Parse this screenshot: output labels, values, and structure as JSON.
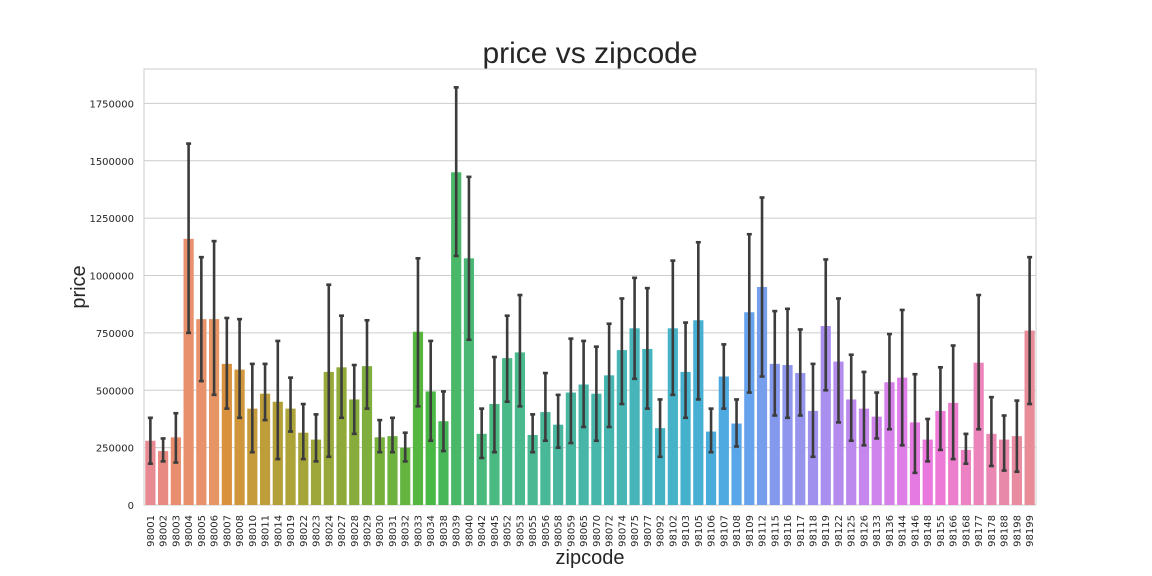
{
  "chart_data": {
    "type": "bar",
    "title": "price vs zipcode",
    "xlabel": "zipcode",
    "ylabel": "price",
    "ylim": [
      0,
      1900000
    ],
    "yticks": [
      0,
      250000,
      500000,
      750000,
      1000000,
      1250000,
      1500000,
      1750000
    ],
    "grid": "horizontal",
    "error_bars": true,
    "categories": [
      "98001",
      "98002",
      "98003",
      "98004",
      "98005",
      "98006",
      "98007",
      "98008",
      "98010",
      "98011",
      "98014",
      "98019",
      "98022",
      "98023",
      "98024",
      "98027",
      "98028",
      "98029",
      "98030",
      "98031",
      "98032",
      "98033",
      "98034",
      "98038",
      "98039",
      "98040",
      "98042",
      "98045",
      "98052",
      "98053",
      "98055",
      "98056",
      "98058",
      "98059",
      "98065",
      "98070",
      "98072",
      "98074",
      "98075",
      "98077",
      "98092",
      "98102",
      "98103",
      "98105",
      "98106",
      "98107",
      "98108",
      "98109",
      "98112",
      "98115",
      "98116",
      "98117",
      "98118",
      "98119",
      "98122",
      "98125",
      "98126",
      "98133",
      "98136",
      "98144",
      "98146",
      "98148",
      "98155",
      "98166",
      "98168",
      "98177",
      "98178",
      "98188",
      "98198",
      "98199"
    ],
    "values": [
      280000,
      235000,
      295000,
      1160000,
      810000,
      810000,
      615000,
      590000,
      420000,
      485000,
      450000,
      420000,
      315000,
      285000,
      580000,
      600000,
      460000,
      605000,
      295000,
      300000,
      250000,
      755000,
      495000,
      365000,
      1450000,
      1075000,
      310000,
      440000,
      640000,
      665000,
      305000,
      405000,
      350000,
      490000,
      525000,
      485000,
      565000,
      675000,
      770000,
      680000,
      335000,
      770000,
      580000,
      805000,
      320000,
      560000,
      355000,
      840000,
      950000,
      615000,
      610000,
      575000,
      410000,
      780000,
      625000,
      460000,
      420000,
      385000,
      535000,
      555000,
      360000,
      285000,
      410000,
      445000,
      240000,
      620000,
      310000,
      285000,
      300000,
      760000
    ],
    "error_low": [
      180000,
      190000,
      185000,
      750000,
      540000,
      480000,
      420000,
      380000,
      230000,
      370000,
      200000,
      320000,
      200000,
      190000,
      210000,
      380000,
      310000,
      420000,
      230000,
      230000,
      190000,
      430000,
      280000,
      235000,
      1085000,
      720000,
      205000,
      230000,
      450000,
      430000,
      230000,
      280000,
      250000,
      270000,
      340000,
      280000,
      340000,
      440000,
      550000,
      420000,
      210000,
      480000,
      380000,
      460000,
      230000,
      420000,
      255000,
      490000,
      560000,
      390000,
      380000,
      390000,
      210000,
      500000,
      360000,
      280000,
      260000,
      290000,
      330000,
      260000,
      140000,
      190000,
      240000,
      200000,
      180000,
      330000,
      170000,
      150000,
      145000,
      440000
    ],
    "error_high": [
      380000,
      290000,
      400000,
      1575000,
      1080000,
      1150000,
      815000,
      810000,
      615000,
      615000,
      715000,
      555000,
      440000,
      395000,
      960000,
      825000,
      610000,
      805000,
      370000,
      380000,
      315000,
      1075000,
      715000,
      495000,
      1820000,
      1430000,
      420000,
      645000,
      825000,
      915000,
      395000,
      575000,
      480000,
      725000,
      715000,
      690000,
      790000,
      900000,
      990000,
      945000,
      460000,
      1065000,
      795000,
      1145000,
      420000,
      700000,
      460000,
      1180000,
      1340000,
      845000,
      855000,
      765000,
      615000,
      1070000,
      900000,
      655000,
      580000,
      490000,
      745000,
      850000,
      570000,
      375000,
      600000,
      695000,
      310000,
      915000,
      470000,
      390000,
      455000,
      1080000
    ],
    "colors": [
      "#e88a91",
      "#e88a82",
      "#e88d6e",
      "#e8906c",
      "#e7926a",
      "#e69565",
      "#d9913d",
      "#cf963c",
      "#c69b3b",
      "#bd9e3a",
      "#b4a039",
      "#aca339",
      "#a5a539",
      "#9ea73a",
      "#98a83a",
      "#90aa3a",
      "#88ac3b",
      "#80ae3c",
      "#78b03c",
      "#6fb23e",
      "#64b43f",
      "#56b640",
      "#4ab845",
      "#47b75a",
      "#4ab869",
      "#4ab874",
      "#4ab97c",
      "#4ab982",
      "#4ab988",
      "#4ab98e",
      "#49b893",
      "#49b898",
      "#48b79d",
      "#48b7a2",
      "#47b6a7",
      "#47b6ab",
      "#46b5b0",
      "#46b5b4",
      "#46b4b9",
      "#45b3be",
      "#45b3c3",
      "#45b2c8",
      "#46b1cd",
      "#47afd3",
      "#49acdb",
      "#4faae2",
      "#59a6e8",
      "#67a2ec",
      "#779ded",
      "#8499ee",
      "#8e96ee",
      "#9794ee",
      "#a091ee",
      "#a98fee",
      "#b38cee",
      "#bc89ee",
      "#c587ed",
      "#ce84ec",
      "#d681ea",
      "#de7ee7",
      "#e57ae3",
      "#eb78de",
      "#ed7ad6",
      "#ed7dcd",
      "#ec81c4",
      "#eb84bb",
      "#ea87b2",
      "#e989aa",
      "#e98ba1",
      "#e88c98"
    ]
  }
}
